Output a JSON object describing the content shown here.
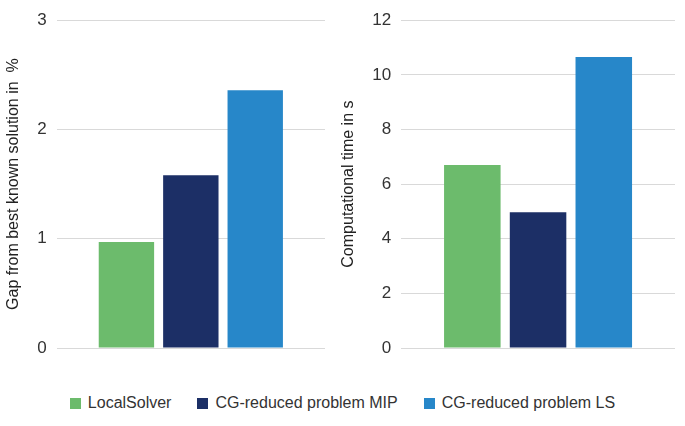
{
  "chart_data": [
    {
      "type": "bar",
      "y_label": "Gap from best known solution in  %",
      "categories": [
        null
      ],
      "series": [
        {
          "name": "LocalSolver",
          "color": "#6cbb6c",
          "values": [
            0.97
          ]
        },
        {
          "name": "CG-reduced problem MIP",
          "color": "#1c2f66",
          "values": [
            1.58
          ]
        },
        {
          "name": "CG-reduced problem LS",
          "color": "#2787c9",
          "values": [
            2.36
          ]
        }
      ],
      "ylim": [
        0,
        3
      ],
      "yticks": [
        0,
        1,
        2,
        3
      ],
      "grid": true,
      "legend": "bottom"
    },
    {
      "type": "bar",
      "y_label": "Computational time in s",
      "categories": [
        null
      ],
      "series": [
        {
          "name": "LocalSolver",
          "color": "#6cbb6c",
          "values": [
            6.7
          ]
        },
        {
          "name": "CG-reduced problem MIP",
          "color": "#1c2f66",
          "values": [
            4.97
          ]
        },
        {
          "name": "CG-reduced problem LS",
          "color": "#2787c9",
          "values": [
            10.65
          ]
        }
      ],
      "ylim": [
        0,
        12
      ],
      "yticks": [
        0,
        2,
        4,
        6,
        8,
        10,
        12
      ],
      "grid": true,
      "legend": "bottom"
    }
  ]
}
